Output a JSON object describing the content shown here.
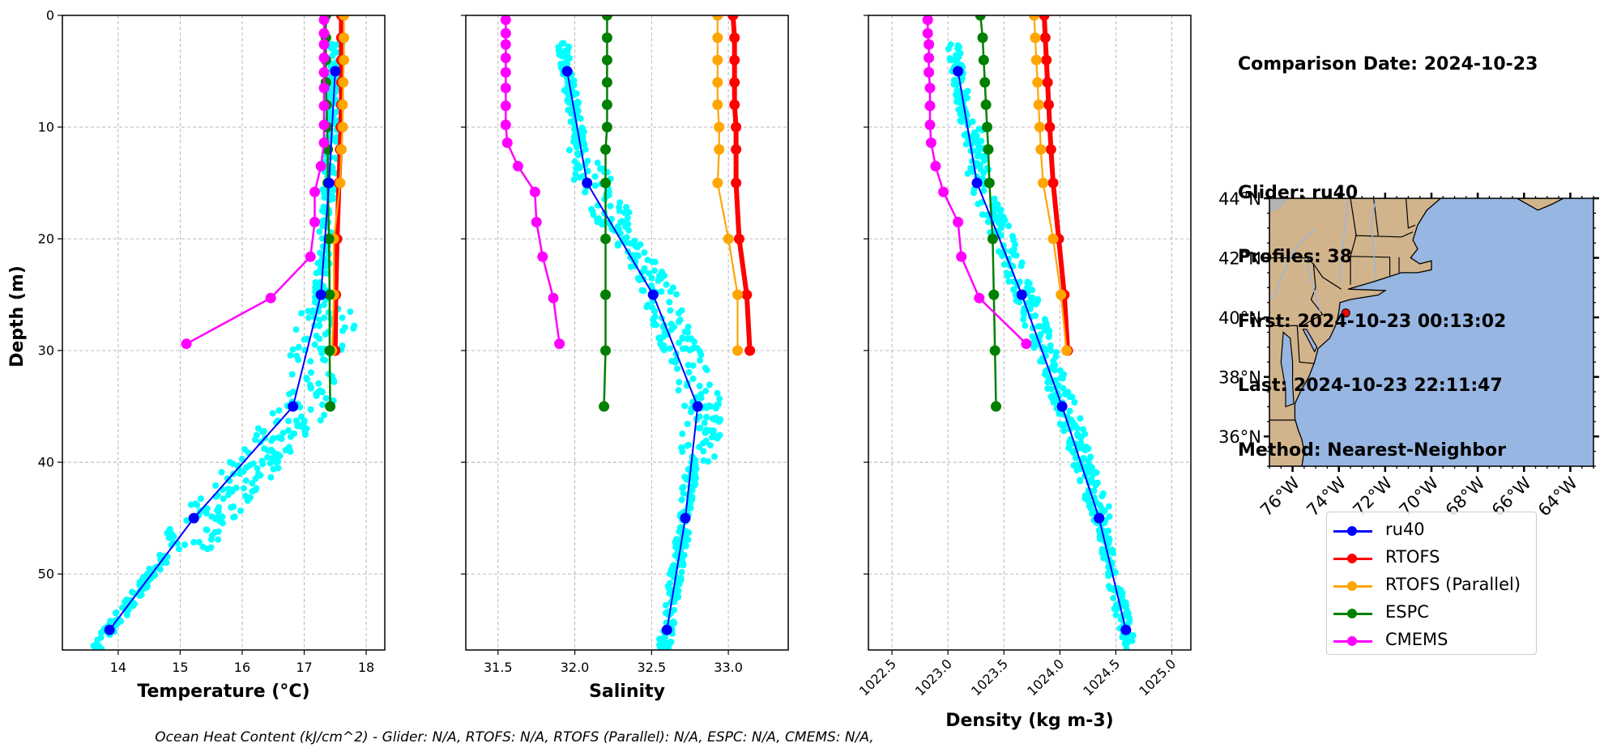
{
  "info": {
    "comparison_date": "Comparison Date: 2024-10-23",
    "glider": "Glider: ru40",
    "profiles": "Profiles: 38",
    "first": "First: 2024-10-23 00:13:02",
    "last": "Last: 2024-10-23 22:11:47",
    "method": "Method: Nearest-Neighbor"
  },
  "footer": "Ocean Heat Content (kJ/cm^2) - Glider: N/A,  RTOFS: N/A,  RTOFS (Parallel): N/A,  ESPC: N/A,  CMEMS: N/A,",
  "legend": [
    {
      "name": "ru40",
      "color": "#0000ff"
    },
    {
      "name": "RTOFS",
      "color": "#ff0000"
    },
    {
      "name": "RTOFS (Parallel)",
      "color": "#ffa500"
    },
    {
      "name": "ESPC",
      "color": "#008000"
    },
    {
      "name": "CMEMS",
      "color": "#ff00ff"
    }
  ],
  "colors": {
    "glider_raw": "#00ffff",
    "grid": "#b0b0b0",
    "land": "#d2b48c",
    "ocean": "#97b6e1",
    "river": "#97b6e1",
    "glider_position": "#ff0000"
  },
  "chart_data": [
    {
      "type": "line",
      "panel": "temperature",
      "xlabel": "Temperature (°C)",
      "ylabel": "Depth (m)",
      "xlim": [
        13.1,
        18.3
      ],
      "ylim": [
        56.8,
        0
      ],
      "xticks": [
        14,
        15,
        16,
        17,
        18
      ],
      "yticks": [
        0,
        10,
        20,
        30,
        40,
        50
      ],
      "grid": true,
      "series": [
        {
          "name": "RTOFS",
          "depth": [
            0,
            2,
            4,
            6,
            8,
            10,
            12,
            15,
            20,
            25,
            30
          ],
          "values": [
            17.6,
            17.6,
            17.6,
            17.6,
            17.6,
            17.59,
            17.58,
            17.56,
            17.53,
            17.51,
            17.5
          ]
        },
        {
          "name": "RTOFS (Parallel)",
          "depth": [
            0,
            2,
            4,
            6,
            8,
            10,
            12,
            15,
            20,
            25,
            30
          ],
          "values": [
            17.64,
            17.64,
            17.64,
            17.63,
            17.62,
            17.62,
            17.6,
            17.58,
            17.48,
            17.48,
            17.45
          ]
        },
        {
          "name": "ESPC",
          "depth": [
            0,
            2,
            4,
            6,
            8,
            10,
            12,
            15,
            20,
            25,
            30,
            35
          ],
          "values": [
            17.35,
            17.35,
            17.35,
            17.35,
            17.36,
            17.37,
            17.38,
            17.38,
            17.4,
            17.41,
            17.41,
            17.42
          ]
        },
        {
          "name": "CMEMS",
          "depth": [
            0.4,
            1.6,
            2.6,
            3.8,
            5.1,
            6.5,
            8.1,
            9.8,
            11.4,
            13.5,
            15.8,
            18.5,
            21.6,
            25.3,
            29.4
          ],
          "values": [
            17.32,
            17.32,
            17.32,
            17.32,
            17.32,
            17.32,
            17.32,
            17.32,
            17.32,
            17.27,
            17.17,
            17.17,
            17.1,
            16.46,
            15.1
          ]
        },
        {
          "name": "ru40",
          "depth": [
            5,
            15,
            25,
            35,
            45,
            55
          ],
          "values": [
            17.5,
            17.4,
            17.27,
            16.82,
            15.22,
            13.86
          ]
        }
      ]
    },
    {
      "type": "line",
      "panel": "salinity",
      "xlabel": "Salinity",
      "xlim": [
        31.29,
        33.39
      ],
      "ylim": [
        56.8,
        0
      ],
      "xticks": [
        31.5,
        32.0,
        32.5,
        33.0
      ],
      "grid": true,
      "series": [
        {
          "name": "RTOFS",
          "depth": [
            0,
            2,
            4,
            6,
            8,
            10,
            12,
            15,
            20,
            25,
            30
          ],
          "values": [
            33.03,
            33.04,
            33.04,
            33.04,
            33.04,
            33.05,
            33.05,
            33.05,
            33.07,
            33.12,
            33.14
          ]
        },
        {
          "name": "RTOFS (Parallel)",
          "depth": [
            0,
            2,
            4,
            6,
            8,
            10,
            12,
            15,
            20,
            25,
            30
          ],
          "values": [
            32.93,
            32.93,
            32.93,
            32.93,
            32.93,
            32.94,
            32.94,
            32.93,
            33.0,
            33.06,
            33.06
          ]
        },
        {
          "name": "ESPC",
          "depth": [
            0,
            2,
            4,
            6,
            8,
            10,
            12,
            15,
            20,
            25,
            30,
            35
          ],
          "values": [
            32.21,
            32.21,
            32.21,
            32.21,
            32.21,
            32.21,
            32.2,
            32.2,
            32.2,
            32.2,
            32.2,
            32.19
          ]
        },
        {
          "name": "CMEMS",
          "depth": [
            0.4,
            1.6,
            2.6,
            3.8,
            5.1,
            6.5,
            8.1,
            9.8,
            11.4,
            13.5,
            15.8,
            18.5,
            21.6,
            25.3,
            29.4
          ],
          "values": [
            31.55,
            31.55,
            31.55,
            31.55,
            31.55,
            31.55,
            31.55,
            31.55,
            31.56,
            31.63,
            31.74,
            31.75,
            31.79,
            31.86,
            31.9
          ]
        },
        {
          "name": "ru40",
          "depth": [
            5,
            15,
            25,
            35,
            45,
            55
          ],
          "values": [
            31.95,
            32.08,
            32.51,
            32.8,
            32.72,
            32.6
          ]
        }
      ]
    },
    {
      "type": "line",
      "panel": "density",
      "xlabel": "Density (kg m-3)",
      "xlim": [
        1022.29,
        1025.17
      ],
      "ylim": [
        56.8,
        0
      ],
      "xticks": [
        1022.5,
        1023.0,
        1023.5,
        1024.0,
        1024.5,
        1025.0
      ],
      "grid": true,
      "series": [
        {
          "name": "RTOFS",
          "depth": [
            0,
            2,
            4,
            6,
            8,
            10,
            12,
            15,
            20,
            25,
            30
          ],
          "values": [
            1023.86,
            1023.87,
            1023.88,
            1023.89,
            1023.9,
            1023.91,
            1023.92,
            1023.94,
            1023.99,
            1024.04,
            1024.07
          ]
        },
        {
          "name": "RTOFS (Parallel)",
          "depth": [
            0,
            2,
            4,
            6,
            8,
            10,
            12,
            15,
            20,
            25,
            30
          ],
          "values": [
            1023.77,
            1023.78,
            1023.79,
            1023.8,
            1023.81,
            1023.82,
            1023.83,
            1023.85,
            1023.94,
            1024.01,
            1024.06
          ]
        },
        {
          "name": "ESPC",
          "depth": [
            0,
            2,
            4,
            6,
            8,
            10,
            12,
            15,
            20,
            25,
            30,
            35
          ],
          "values": [
            1023.29,
            1023.31,
            1023.32,
            1023.33,
            1023.34,
            1023.35,
            1023.36,
            1023.37,
            1023.4,
            1023.41,
            1023.42,
            1023.43
          ]
        },
        {
          "name": "CMEMS",
          "depth": [
            0.4,
            1.6,
            2.6,
            3.8,
            5.1,
            6.5,
            8.1,
            9.8,
            11.4,
            13.5,
            15.8,
            18.5,
            21.6,
            25.3,
            29.4
          ],
          "values": [
            1022.82,
            1022.82,
            1022.83,
            1022.83,
            1022.83,
            1022.84,
            1022.84,
            1022.84,
            1022.85,
            1022.89,
            1022.96,
            1023.09,
            1023.12,
            1023.28,
            1023.7
          ]
        },
        {
          "name": "ru40",
          "depth": [
            5,
            15,
            25,
            35,
            45,
            55
          ],
          "values": [
            1023.09,
            1023.26,
            1023.66,
            1024.02,
            1024.35,
            1024.59
          ]
        }
      ]
    },
    {
      "type": "map",
      "panel": "location-map",
      "lat_range": [
        35,
        44
      ],
      "lon_range": [
        -77,
        -63
      ],
      "yticks": [
        "36°N",
        "38°N",
        "40°N",
        "42°N",
        "44°N"
      ],
      "xticks": [
        "76°W",
        "74°W",
        "72°W",
        "70°W",
        "68°W",
        "66°W",
        "64°W"
      ],
      "marker": {
        "lon": -73.7,
        "lat": 40.15
      }
    }
  ]
}
